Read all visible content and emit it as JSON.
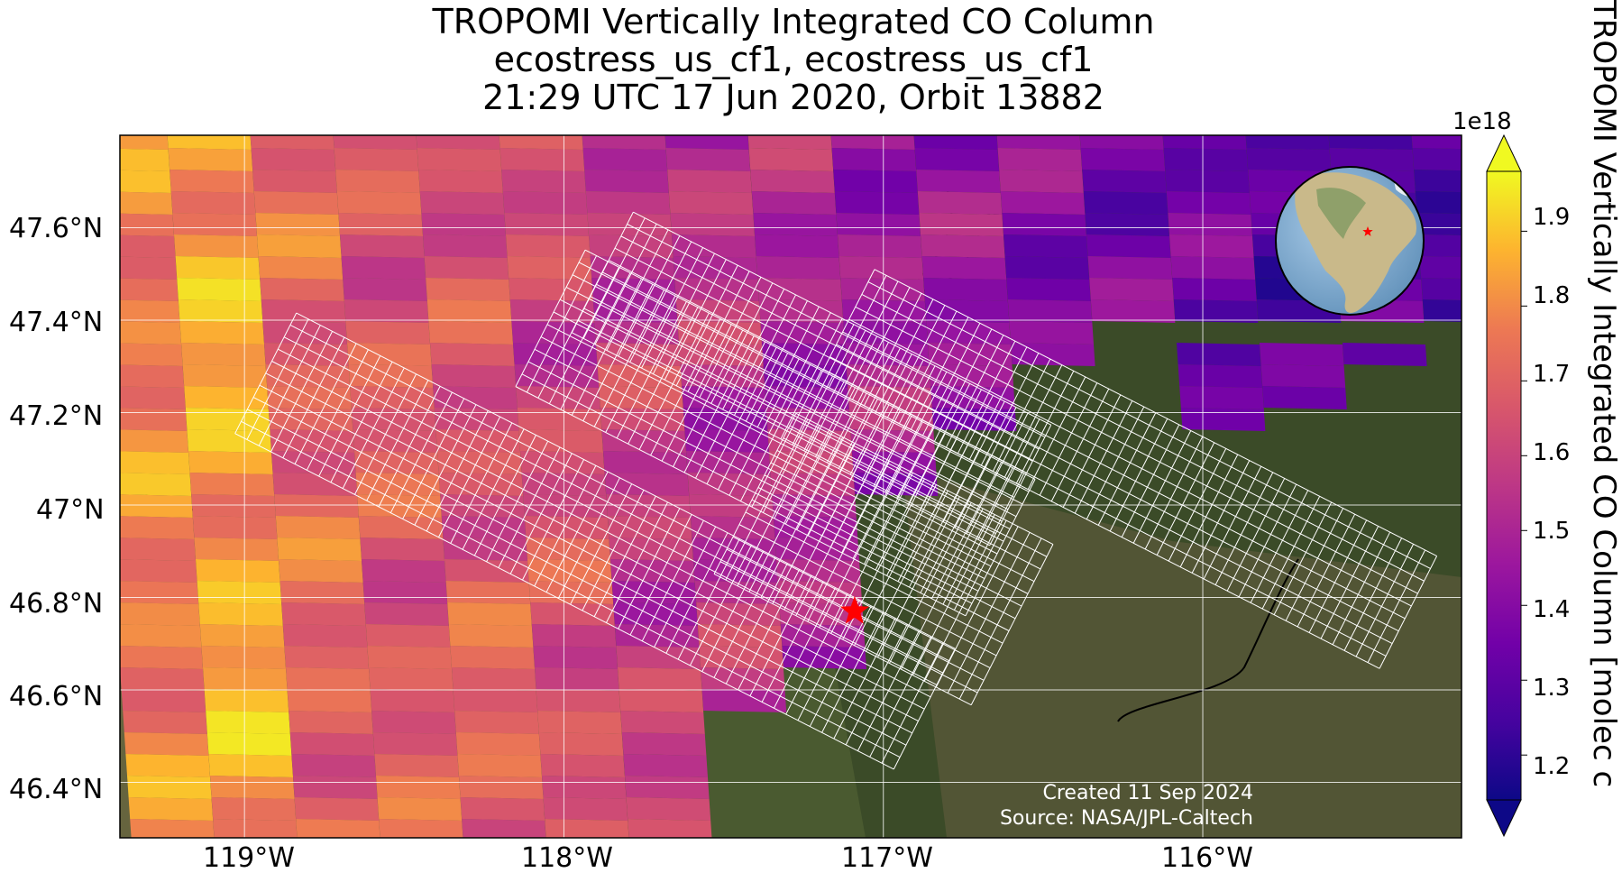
{
  "title": {
    "line1": "TROPOMI Vertically Integrated CO Column",
    "line2": "ecostress_us_cf1, ecostress_us_cf1",
    "line3": "21:29 UTC 17 Jun 2020, Orbit 13882"
  },
  "map": {
    "lat_ticks": [
      "47.6°N",
      "47.4°N",
      "47.2°N",
      "47°N",
      "46.8°N",
      "46.6°N",
      "46.4°N"
    ],
    "lon_ticks": [
      "119°W",
      "118°W",
      "117°W",
      "116°W"
    ],
    "marker": {
      "symbol": "star",
      "color": "#ff0000",
      "lon": -117.09,
      "lat": 46.77
    },
    "grid_color": "#ffffff",
    "inset": "globe-locator",
    "credit_created": "Created 11 Sep 2024",
    "credit_source": "Source: NASA/JPL-Caltech"
  },
  "colorbar": {
    "exponent": "1e18",
    "ticks": [
      "1.9",
      "1.8",
      "1.7",
      "1.6",
      "1.5",
      "1.4",
      "1.3",
      "1.2"
    ],
    "label": "TROPOMI Vertically Integrated CO Column [molec c",
    "colormap": "plasma",
    "range": [
      1.14,
      1.98
    ],
    "extend": "both"
  }
}
